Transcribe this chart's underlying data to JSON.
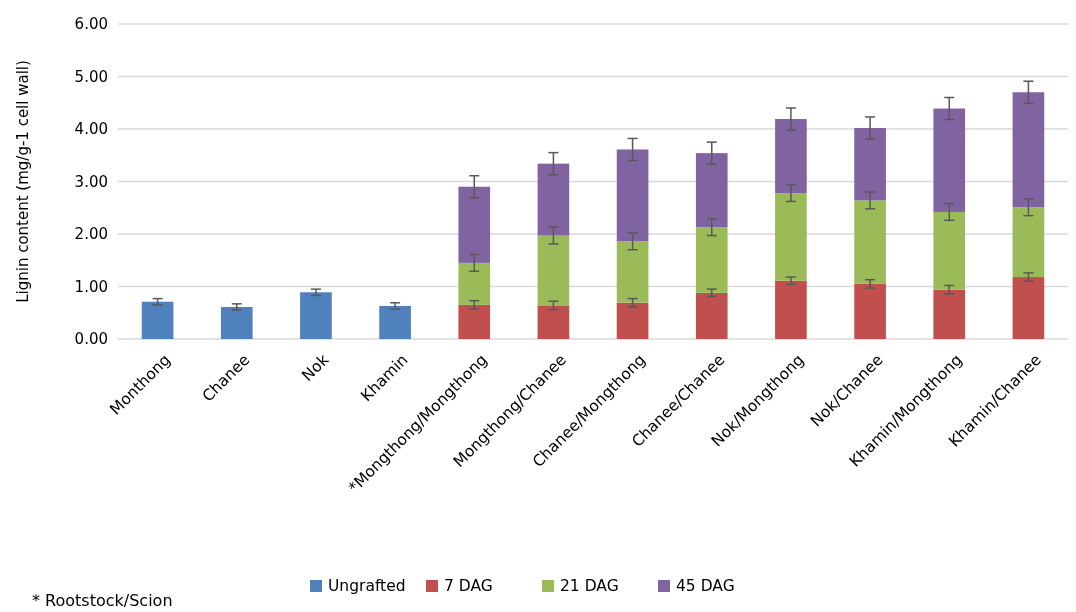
{
  "chart_data": {
    "type": "bar",
    "stacked": true,
    "ylabel": "Lignin content (mg/g-1 cell wall)",
    "categories": [
      "Monthong",
      "Chanee",
      "Nok",
      "Khamin",
      "*Mongthong/Mongthong",
      "Mongthong/Chanee",
      "Chanee/Mongthong",
      "Chanee/Chanee",
      "Nok/Mongthong",
      "Nok/Chanee",
      "Khamin/Mongthong",
      "Khamin/Chanee"
    ],
    "series": [
      {
        "name": "Ungrafted",
        "color": "#4f81bd",
        "values": [
          0.71,
          0.61,
          0.89,
          0.63,
          null,
          null,
          null,
          null,
          null,
          null,
          null,
          null
        ],
        "errors": [
          0.06,
          0.06,
          0.06,
          0.06,
          null,
          null,
          null,
          null,
          null,
          null,
          null,
          null
        ]
      },
      {
        "name": "7 DAG",
        "color": "#c0504d",
        "values": [
          null,
          null,
          null,
          null,
          0.65,
          0.64,
          0.69,
          0.88,
          1.11,
          1.05,
          0.94,
          1.18
        ],
        "errors": [
          null,
          null,
          null,
          null,
          0.08,
          0.08,
          0.08,
          0.07,
          0.07,
          0.08,
          0.08,
          0.08
        ]
      },
      {
        "name": "21 DAG",
        "color": "#9bbb59",
        "values": [
          null,
          null,
          null,
          null,
          0.8,
          1.33,
          1.17,
          1.25,
          1.67,
          1.59,
          1.48,
          1.33
        ],
        "errors": [
          null,
          null,
          null,
          null,
          0.16,
          0.16,
          0.16,
          0.16,
          0.16,
          0.16,
          0.16,
          0.16
        ]
      },
      {
        "name": "45 DAG",
        "color": "#8064a2",
        "values": [
          null,
          null,
          null,
          null,
          1.45,
          1.37,
          1.75,
          1.41,
          1.41,
          1.38,
          1.97,
          2.19
        ],
        "errors": [
          null,
          null,
          null,
          null,
          0.21,
          0.21,
          0.21,
          0.21,
          0.21,
          0.21,
          0.21,
          0.21
        ]
      }
    ],
    "ylim": [
      0,
      6
    ],
    "yticks": [
      {
        "value": 0,
        "label": "0.00"
      },
      {
        "value": 1,
        "label": "1.00"
      },
      {
        "value": 2,
        "label": "2.00"
      },
      {
        "value": 3,
        "label": "3.00"
      },
      {
        "value": 4,
        "label": "4.00"
      },
      {
        "value": 5,
        "label": "5.00"
      },
      {
        "value": 6,
        "label": "6.00"
      }
    ],
    "grid": "y",
    "legend": "bottom",
    "annotations": [
      "* Rootstock/Scion"
    ]
  }
}
